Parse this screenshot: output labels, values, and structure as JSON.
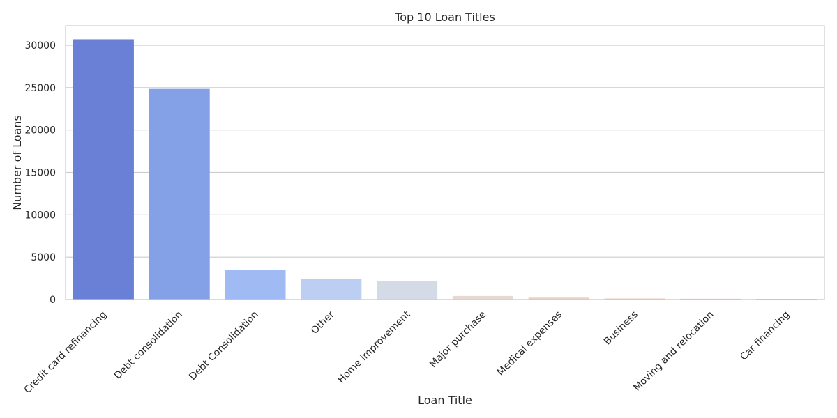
{
  "chart_data": {
    "type": "bar",
    "title": "Top 10 Loan Titles",
    "xlabel": "Loan Title",
    "ylabel": "Number of Loans",
    "categories": [
      "Credit card refinancing",
      "Debt consolidation",
      "Debt Consolidation",
      "Other",
      "Home improvement",
      "Major purchase",
      "Medical expenses",
      "Business",
      "Moving and relocation",
      "Car financing"
    ],
    "values": [
      30700,
      24850,
      3500,
      2430,
      2200,
      420,
      220,
      120,
      90,
      80
    ],
    "ylim": [
      0,
      32300
    ],
    "yticks": [
      0,
      5000,
      10000,
      15000,
      20000,
      25000,
      30000
    ],
    "colors": [
      "#6a7fd6",
      "#84a0e6",
      "#a0baf3",
      "#bccff3",
      "#d4dbe6",
      "#e6d8d2",
      "#e9d0c4",
      "#ebc5b4",
      "#e8b8a3",
      "#e3a993"
    ],
    "grid": true,
    "gridColor": "#cccccc",
    "legend": "none"
  }
}
